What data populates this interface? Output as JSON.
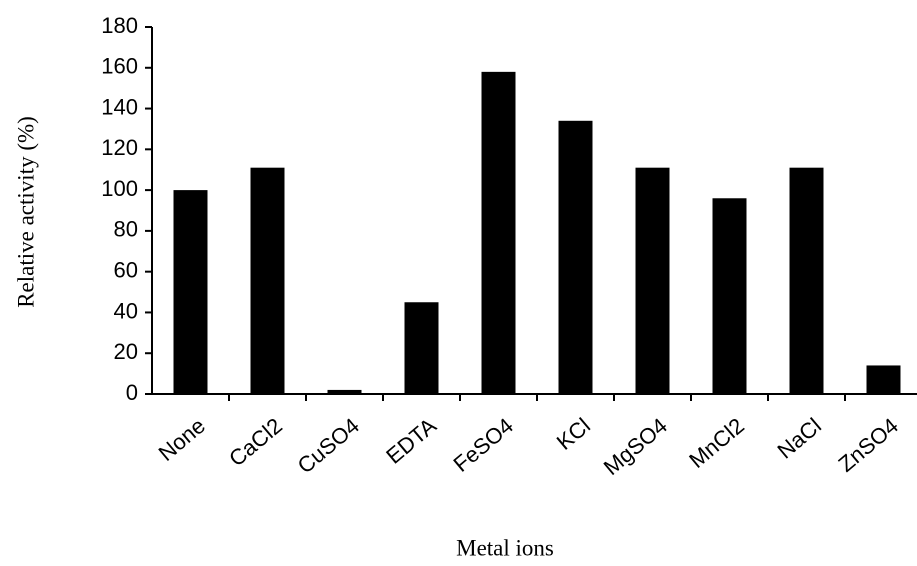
{
  "chart_data": {
    "type": "bar",
    "x_label": "Metal ions",
    "y_label": "Relative activity (%)",
    "categories": [
      "None",
      "CaCl2",
      "CuSO4",
      "EDTA",
      "FeSO4",
      "KCl",
      "MgSO4",
      "MnCl2",
      "NaCl",
      "ZnSO4"
    ],
    "values": [
      100,
      111,
      2,
      45,
      158,
      134,
      111,
      96,
      111,
      14
    ],
    "color": "#000000",
    "ylim": [
      0,
      180
    ],
    "yticks": [
      0,
      20,
      40,
      60,
      80,
      100,
      120,
      140,
      160,
      180
    ],
    "grid": false
  }
}
